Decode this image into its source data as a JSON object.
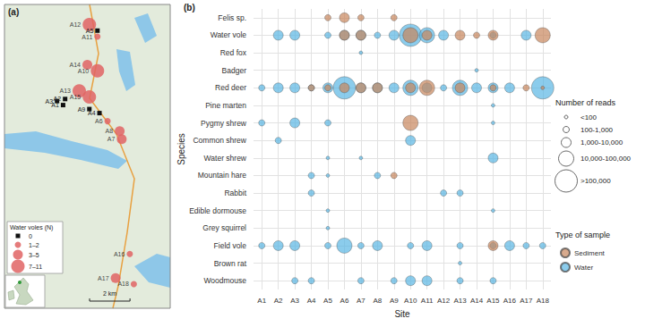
{
  "chart_data": [
    {
      "type": "map",
      "label": "(a)",
      "xlim": [
        0,
        8.2
      ],
      "ylim": [
        0,
        15.1
      ],
      "tick_labels": false,
      "grid": false,
      "legend_title": "Water voles (N)",
      "legend": "bottom-left",
      "classes": [
        {
          "name": "0",
          "color": "#111111",
          "marker": "square"
        },
        {
          "name": "1–2",
          "color": "#e06464",
          "marker": "circle"
        },
        {
          "name": "3–5",
          "color": "#e06464",
          "marker": "circle"
        },
        {
          "name": "7–11",
          "color": "#e06464",
          "marker": "circle"
        }
      ],
      "sites": [
        {
          "name": "A1",
          "x": 2.9,
          "y": 10.1,
          "voles": "0"
        },
        {
          "name": "A2",
          "x": 3.0,
          "y": 10.4,
          "voles": "0"
        },
        {
          "name": "A3",
          "x": 2.6,
          "y": 10.3,
          "voles": "0"
        },
        {
          "name": "A4",
          "x": 4.7,
          "y": 9.7,
          "voles": "0"
        },
        {
          "name": "A5",
          "x": 4.6,
          "y": 13.8,
          "voles": "0"
        },
        {
          "name": "A6",
          "x": 5.1,
          "y": 9.3,
          "voles": "1–2"
        },
        {
          "name": "A7",
          "x": 5.8,
          "y": 8.4,
          "voles": "3–5"
        },
        {
          "name": "A8",
          "x": 5.7,
          "y": 8.8,
          "voles": "3–5"
        },
        {
          "name": "A9",
          "x": 4.2,
          "y": 9.9,
          "voles": "0"
        },
        {
          "name": "A10",
          "x": 4.6,
          "y": 11.8,
          "voles": "7–11"
        },
        {
          "name": "A11",
          "x": 4.6,
          "y": 13.5,
          "voles": "1–2"
        },
        {
          "name": "A12",
          "x": 4.2,
          "y": 14.1,
          "voles": "7–11"
        },
        {
          "name": "A13",
          "x": 3.7,
          "y": 10.8,
          "voles": "7–11"
        },
        {
          "name": "A14",
          "x": 4.1,
          "y": 12.1,
          "voles": "3–5"
        },
        {
          "name": "A15",
          "x": 4.2,
          "y": 10.5,
          "voles": "7–11"
        },
        {
          "name": "A16",
          "x": 6.2,
          "y": 2.7,
          "voles": "1–2"
        },
        {
          "name": "A17",
          "x": 5.5,
          "y": 1.5,
          "voles": "3–5"
        },
        {
          "name": "A18",
          "x": 6.4,
          "y": 1.2,
          "voles": "1–2"
        }
      ],
      "scale_bar": {
        "label": "2 km",
        "length": 2
      }
    },
    {
      "type": "scatter",
      "label": "(b)",
      "x_label": "Site",
      "y_label": "Species",
      "grid": true,
      "categories": [
        "A1",
        "A2",
        "A3",
        "A4",
        "A5",
        "A6",
        "A7",
        "A8",
        "A9",
        "A10",
        "A11",
        "A12",
        "A13",
        "A14",
        "A15",
        "A16",
        "A17",
        "A18"
      ],
      "species": [
        "Felis sp.",
        "Water vole",
        "Red fox",
        "Badger",
        "Red deer",
        "Pine marten",
        "Pygmy shrew",
        "Common shrew",
        "Water shrew",
        "Mountain hare",
        "Rabbit",
        "Edible dormouse",
        "Grey squirrel",
        "Field vole",
        "Brown rat",
        "Woodmouse"
      ],
      "size_title": "Number of reads",
      "size_classes": [
        "<100",
        "100-1,000",
        "1,000-10,000",
        "10,000-100,000",
        ">100,000"
      ],
      "legend_title": "Type of sample",
      "legend": "right",
      "series": [
        {
          "name": "Sediment",
          "color": "#c8865c",
          "points": [
            [
              "A5",
              "Felis sp.",
              "100-1,000"
            ],
            [
              "A6",
              "Felis sp.",
              "1,000-10,000"
            ],
            [
              "A7",
              "Felis sp.",
              "100-1,000"
            ],
            [
              "A9",
              "Felis sp.",
              "100-1,000"
            ],
            [
              "A6",
              "Water vole",
              "1,000-10,000"
            ],
            [
              "A7",
              "Water vole",
              "1,000-10,000"
            ],
            [
              "A10",
              "Water vole",
              "10,000-100,000"
            ],
            [
              "A11",
              "Water vole",
              "1,000-10,000"
            ],
            [
              "A13",
              "Water vole",
              "1,000-10,000"
            ],
            [
              "A14",
              "Water vole",
              "100-1,000"
            ],
            [
              "A15",
              "Water vole",
              "1,000-10,000"
            ],
            [
              "A18",
              "Water vole",
              "10,000-100,000"
            ],
            [
              "A4",
              "Red deer",
              "100-1,000"
            ],
            [
              "A5",
              "Red deer",
              "100-1,000"
            ],
            [
              "A6",
              "Red deer",
              "1,000-10,000"
            ],
            [
              "A7",
              "Red deer",
              "1,000-10,000"
            ],
            [
              "A8",
              "Red deer",
              "1,000-10,000"
            ],
            [
              "A10",
              "Red deer",
              "1,000-10,000"
            ],
            [
              "A11",
              "Red deer",
              "10,000-100,000"
            ],
            [
              "A13",
              "Red deer",
              "1,000-10,000"
            ],
            [
              "A15",
              "Red deer",
              "100-1,000"
            ],
            [
              "A17",
              "Red deer",
              "100-1,000"
            ],
            [
              "A18",
              "Red deer",
              "<100"
            ],
            [
              "A10",
              "Pygmy shrew",
              "10,000-100,000"
            ],
            [
              "A9",
              "Mountain hare",
              "100-1,000"
            ],
            [
              "A15",
              "Field vole",
              "1,000-10,000"
            ]
          ]
        },
        {
          "name": "Water",
          "color": "#5ab6e4",
          "points": [
            [
              "A2",
              "Water vole",
              "1,000-10,000"
            ],
            [
              "A3",
              "Water vole",
              "1,000-10,000"
            ],
            [
              "A5",
              "Water vole",
              "100-1,000"
            ],
            [
              "A6",
              "Water vole",
              "1,000-10,000"
            ],
            [
              "A7",
              "Water vole",
              "1,000-10,000"
            ],
            [
              "A8",
              "Water vole",
              "100-1,000"
            ],
            [
              "A9",
              "Water vole",
              "1,000-10,000"
            ],
            [
              "A10",
              "Water vole",
              ">100,000"
            ],
            [
              "A11",
              "Water vole",
              "10,000-100,000"
            ],
            [
              "A12",
              "Water vole",
              "1,000-10,000"
            ],
            [
              "A15",
              "Water vole",
              "100-1,000"
            ],
            [
              "A17",
              "Water vole",
              "1,000-10,000"
            ],
            [
              "A7",
              "Red fox",
              "<100"
            ],
            [
              "A14",
              "Badger",
              "<100"
            ],
            [
              "A1",
              "Red deer",
              "100-1,000"
            ],
            [
              "A2",
              "Red deer",
              "1,000-10,000"
            ],
            [
              "A3",
              "Red deer",
              "1,000-10,000"
            ],
            [
              "A4",
              "Red deer",
              "100-1,000"
            ],
            [
              "A5",
              "Red deer",
              "1,000-10,000"
            ],
            [
              "A6",
              "Red deer",
              ">100,000"
            ],
            [
              "A7",
              "Red deer",
              "1,000-10,000"
            ],
            [
              "A8",
              "Red deer",
              "1,000-10,000"
            ],
            [
              "A9",
              "Red deer",
              "1,000-10,000"
            ],
            [
              "A10",
              "Red deer",
              "10,000-100,000"
            ],
            [
              "A11",
              "Red deer",
              "1,000-10,000"
            ],
            [
              "A12",
              "Red deer",
              "100-1,000"
            ],
            [
              "A13",
              "Red deer",
              "10,000-100,000"
            ],
            [
              "A14",
              "Red deer",
              "1,000-10,000"
            ],
            [
              "A15",
              "Red deer",
              "1,000-10,000"
            ],
            [
              "A16",
              "Red deer",
              "1,000-10,000"
            ],
            [
              "A18",
              "Red deer",
              ">100,000"
            ],
            [
              "A15",
              "Pine marten",
              "<100"
            ],
            [
              "A1",
              "Pygmy shrew",
              "100-1,000"
            ],
            [
              "A3",
              "Pygmy shrew",
              "1,000-10,000"
            ],
            [
              "A5",
              "Pygmy shrew",
              "100-1,000"
            ],
            [
              "A15",
              "Pygmy shrew",
              "<100"
            ],
            [
              "A2",
              "Common shrew",
              "100-1,000"
            ],
            [
              "A10",
              "Common shrew",
              "1,000-10,000"
            ],
            [
              "A5",
              "Water shrew",
              "<100"
            ],
            [
              "A7",
              "Water shrew",
              "<100"
            ],
            [
              "A15",
              "Water shrew",
              "1,000-10,000"
            ],
            [
              "A4",
              "Mountain hare",
              "100-1,000"
            ],
            [
              "A5",
              "Mountain hare",
              "<100"
            ],
            [
              "A8",
              "Mountain hare",
              "100-1,000"
            ],
            [
              "A4",
              "Rabbit",
              "100-1,000"
            ],
            [
              "A12",
              "Rabbit",
              "100-1,000"
            ],
            [
              "A13",
              "Rabbit",
              "100-1,000"
            ],
            [
              "A5",
              "Edible dormouse",
              "<100"
            ],
            [
              "A15",
              "Edible dormouse",
              "<100"
            ],
            [
              "A5",
              "Grey squirrel",
              "<100"
            ],
            [
              "A1",
              "Field vole",
              "100-1,000"
            ],
            [
              "A2",
              "Field vole",
              "1,000-10,000"
            ],
            [
              "A3",
              "Field vole",
              "1,000-10,000"
            ],
            [
              "A5",
              "Field vole",
              "100-1,000"
            ],
            [
              "A6",
              "Field vole",
              "10,000-100,000"
            ],
            [
              "A7",
              "Field vole",
              "100-1,000"
            ],
            [
              "A8",
              "Field vole",
              "1,000-10,000"
            ],
            [
              "A10",
              "Field vole",
              "100-1,000"
            ],
            [
              "A11",
              "Field vole",
              "1,000-10,000"
            ],
            [
              "A13",
              "Field vole",
              "100-1,000"
            ],
            [
              "A15",
              "Field vole",
              "100-1,000"
            ],
            [
              "A16",
              "Field vole",
              "1,000-10,000"
            ],
            [
              "A17",
              "Field vole",
              "100-1,000"
            ],
            [
              "A18",
              "Field vole",
              "100-1,000"
            ],
            [
              "A13",
              "Brown rat",
              "<100"
            ],
            [
              "A3",
              "Woodmouse",
              "100-1,000"
            ],
            [
              "A4",
              "Woodmouse",
              "100-1,000"
            ],
            [
              "A7",
              "Woodmouse",
              "100-1,000"
            ],
            [
              "A9",
              "Woodmouse",
              "100-1,000"
            ],
            [
              "A10",
              "Woodmouse",
              "1,000-10,000"
            ],
            [
              "A11",
              "Woodmouse",
              "1,000-10,000"
            ],
            [
              "A13",
              "Woodmouse",
              "100-1,000"
            ],
            [
              "A15",
              "Woodmouse",
              "100-1,000"
            ]
          ]
        }
      ]
    }
  ]
}
